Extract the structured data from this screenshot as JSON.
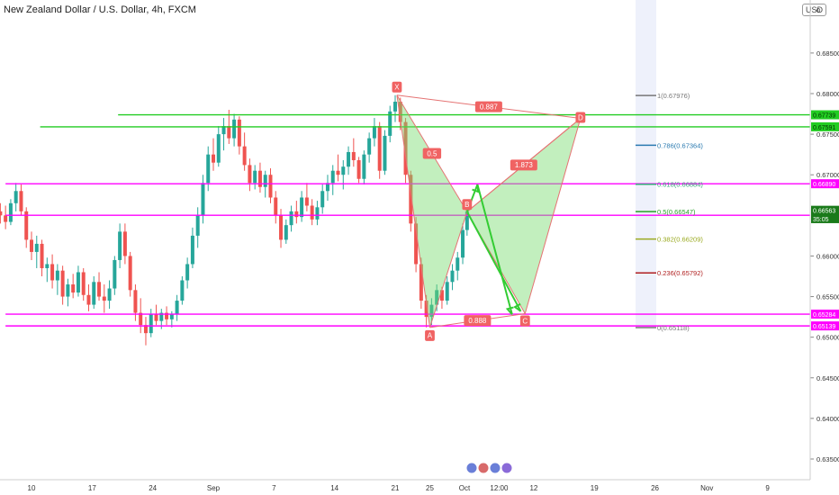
{
  "header": {
    "title": "New Zealand Dollar / U.S. Dollar, 4h, FXCM",
    "currency_label": "USD"
  },
  "chart_data": {
    "type": "candlestick",
    "title": "New Zealand Dollar / U.S. Dollar, 4h, FXCM",
    "symbol": "NZDUSD",
    "timeframe": "4h",
    "source": "FXCM",
    "ylim": [
      0.6325,
      0.681
    ],
    "y_ticks": [
      {
        "value": 0.635,
        "label": "0.63500"
      },
      {
        "value": 0.64,
        "label": "0.64000"
      },
      {
        "value": 0.645,
        "label": "0.64500"
      },
      {
        "value": 0.65,
        "label": "0.65000"
      },
      {
        "value": 0.655,
        "label": "0.65500"
      },
      {
        "value": 0.66,
        "label": "0.66000"
      },
      {
        "value": 0.67,
        "label": "0.67000"
      },
      {
        "value": 0.675,
        "label": "0.67500"
      },
      {
        "value": 0.68,
        "label": "0.68000"
      },
      {
        "value": 0.685,
        "label": "0.68500"
      }
    ],
    "top_label": "0",
    "x_ticks": [
      {
        "label": "10",
        "day": 0
      },
      {
        "label": "17",
        "day": 7
      },
      {
        "label": "24",
        "day": 14
      },
      {
        "label": "Sep",
        "day": 21
      },
      {
        "label": "7",
        "day": 28
      },
      {
        "label": "14",
        "day": 35
      },
      {
        "label": "21",
        "day": 42
      },
      {
        "label": "25",
        "day": 46
      },
      {
        "label": "Oct",
        "day": 50
      },
      {
        "label": "12:00",
        "day": 54
      },
      {
        "label": "12",
        "day": 58
      },
      {
        "label": "19",
        "day": 65
      },
      {
        "label": "26",
        "day": 72
      },
      {
        "label": "Nov",
        "day": 78
      },
      {
        "label": "9",
        "day": 85
      }
    ],
    "horizontal_lines": [
      {
        "price": 0.67739,
        "color": "#22cc22",
        "label": "0.67739",
        "start_day": 10
      },
      {
        "price": 0.67591,
        "color": "#22cc22",
        "label": "0.67591",
        "start_day": 1
      },
      {
        "price": 0.6689,
        "color": "#ff00ff",
        "label": "0.66890",
        "start_day": -3
      },
      {
        "price": 0.66502,
        "color": "#ff00ff",
        "label": "0.66502",
        "start_day": -3
      },
      {
        "price": 0.65284,
        "color": "#ff00ff",
        "label": "0.65284",
        "start_day": -3
      },
      {
        "price": 0.65139,
        "color": "#ff00ff",
        "label": "0.65139",
        "start_day": -3
      }
    ],
    "price_labels": [
      {
        "price": 0.66563,
        "label": "0.66563",
        "color": "#1a7a1a"
      },
      {
        "price": 0.6646,
        "label": "35:05",
        "color": "#1a7a1a"
      }
    ],
    "fibonacci": [
      {
        "level": "1",
        "price": 0.67976,
        "label": "1(0.67976)",
        "color": "#777777"
      },
      {
        "level": "0.786",
        "price": 0.67364,
        "label": "0.786(0.67364)",
        "color": "#2a7ab0"
      },
      {
        "level": "0.618",
        "price": 0.66884,
        "label": "0.618(0.66884)",
        "color": "#35a77a"
      },
      {
        "level": "0.5",
        "price": 0.66547,
        "label": "0.5(0.66547)",
        "color": "#2aa02a"
      },
      {
        "level": "0.382",
        "price": 0.66209,
        "label": "0.382(0.66209)",
        "color": "#9aaa20"
      },
      {
        "level": "0.236",
        "price": 0.65792,
        "label": "0.236(0.65792)",
        "color": "#b02020"
      },
      {
        "level": "0",
        "price": 0.65118,
        "label": "0(0.65118)",
        "color": "#777777"
      }
    ],
    "harmonic_pattern": {
      "points": [
        {
          "name": "X",
          "day": 42.2,
          "price": 0.6798
        },
        {
          "name": "A",
          "day": 46.0,
          "price": 0.6512
        },
        {
          "name": "B",
          "day": 50.3,
          "price": 0.66545
        },
        {
          "name": "C",
          "day": 57.0,
          "price": 0.6529
        },
        {
          "name": "D",
          "day": 63.4,
          "price": 0.67695
        }
      ],
      "ratios": [
        {
          "label": "0.887",
          "between": [
            "X",
            "D"
          ]
        },
        {
          "label": "0.5",
          "between": [
            "X",
            "B"
          ]
        },
        {
          "label": "1.873",
          "between": [
            "B",
            "D"
          ]
        },
        {
          "label": "0.888",
          "between": [
            "A",
            "C"
          ]
        }
      ],
      "projection_arrows": [
        {
          "from": {
            "day": 50.3,
            "price": 0.66545
          },
          "to": {
            "day": 51.5,
            "price": 0.6688
          }
        },
        {
          "from": {
            "day": 51.5,
            "price": 0.6688
          },
          "to": {
            "day": 55.5,
            "price": 0.6528
          }
        },
        {
          "from": {
            "day": 50.3,
            "price": 0.66545
          },
          "to": {
            "day": 56.5,
            "price": 0.6532
          }
        }
      ]
    },
    "candles": [
      {
        "day": -3.6,
        "o": 0.6655,
        "h": 0.6665,
        "l": 0.664,
        "c": 0.665
      },
      {
        "day": -3.0,
        "o": 0.665,
        "h": 0.6662,
        "l": 0.6633,
        "c": 0.6642
      },
      {
        "day": -2.4,
        "o": 0.6642,
        "h": 0.667,
        "l": 0.6638,
        "c": 0.6665
      },
      {
        "day": -1.8,
        "o": 0.6665,
        "h": 0.669,
        "l": 0.6655,
        "c": 0.668
      },
      {
        "day": -1.2,
        "o": 0.668,
        "h": 0.6688,
        "l": 0.665,
        "c": 0.6655
      },
      {
        "day": -0.6,
        "o": 0.6655,
        "h": 0.666,
        "l": 0.661,
        "c": 0.662
      },
      {
        "day": 0.0,
        "o": 0.662,
        "h": 0.663,
        "l": 0.6595,
        "c": 0.6605
      },
      {
        "day": 0.6,
        "o": 0.6605,
        "h": 0.6625,
        "l": 0.6585,
        "c": 0.6615
      },
      {
        "day": 1.2,
        "o": 0.6615,
        "h": 0.662,
        "l": 0.6575,
        "c": 0.6585
      },
      {
        "day": 1.8,
        "o": 0.6585,
        "h": 0.6598,
        "l": 0.6568,
        "c": 0.659
      },
      {
        "day": 2.4,
        "o": 0.659,
        "h": 0.6602,
        "l": 0.656,
        "c": 0.657
      },
      {
        "day": 3.0,
        "o": 0.657,
        "h": 0.659,
        "l": 0.6552,
        "c": 0.6582
      },
      {
        "day": 3.6,
        "o": 0.6582,
        "h": 0.6588,
        "l": 0.654,
        "c": 0.655
      },
      {
        "day": 4.2,
        "o": 0.655,
        "h": 0.6572,
        "l": 0.6538,
        "c": 0.6565
      },
      {
        "day": 4.8,
        "o": 0.6565,
        "h": 0.6578,
        "l": 0.6548,
        "c": 0.6555
      },
      {
        "day": 5.4,
        "o": 0.6555,
        "h": 0.6588,
        "l": 0.655,
        "c": 0.658
      },
      {
        "day": 6.0,
        "o": 0.658,
        "h": 0.6585,
        "l": 0.6545,
        "c": 0.6552
      },
      {
        "day": 6.6,
        "o": 0.6552,
        "h": 0.6565,
        "l": 0.6532,
        "c": 0.654
      },
      {
        "day": 7.2,
        "o": 0.654,
        "h": 0.6575,
        "l": 0.6535,
        "c": 0.6568
      },
      {
        "day": 7.8,
        "o": 0.6568,
        "h": 0.658,
        "l": 0.6545,
        "c": 0.655
      },
      {
        "day": 8.4,
        "o": 0.655,
        "h": 0.6565,
        "l": 0.653,
        "c": 0.6545
      },
      {
        "day": 9.0,
        "o": 0.6545,
        "h": 0.657,
        "l": 0.6535,
        "c": 0.656
      },
      {
        "day": 9.6,
        "o": 0.656,
        "h": 0.66,
        "l": 0.6552,
        "c": 0.6595
      },
      {
        "day": 10.2,
        "o": 0.6595,
        "h": 0.664,
        "l": 0.6585,
        "c": 0.663
      },
      {
        "day": 10.8,
        "o": 0.663,
        "h": 0.664,
        "l": 0.659,
        "c": 0.66
      },
      {
        "day": 11.4,
        "o": 0.66,
        "h": 0.6605,
        "l": 0.655,
        "c": 0.6558
      },
      {
        "day": 12.0,
        "o": 0.6558,
        "h": 0.6565,
        "l": 0.652,
        "c": 0.653
      },
      {
        "day": 12.6,
        "o": 0.653,
        "h": 0.6548,
        "l": 0.6505,
        "c": 0.6515
      },
      {
        "day": 13.2,
        "o": 0.6515,
        "h": 0.6525,
        "l": 0.649,
        "c": 0.6505
      },
      {
        "day": 13.8,
        "o": 0.6505,
        "h": 0.6535,
        "l": 0.65,
        "c": 0.6528
      },
      {
        "day": 14.4,
        "o": 0.6528,
        "h": 0.654,
        "l": 0.6515,
        "c": 0.652
      },
      {
        "day": 15.0,
        "o": 0.652,
        "h": 0.6535,
        "l": 0.651,
        "c": 0.653
      },
      {
        "day": 15.6,
        "o": 0.653,
        "h": 0.6538,
        "l": 0.6515,
        "c": 0.6522
      },
      {
        "day": 16.2,
        "o": 0.6522,
        "h": 0.6532,
        "l": 0.6512,
        "c": 0.6528
      },
      {
        "day": 16.8,
        "o": 0.6528,
        "h": 0.6552,
        "l": 0.652,
        "c": 0.6545
      },
      {
        "day": 17.4,
        "o": 0.6545,
        "h": 0.6575,
        "l": 0.654,
        "c": 0.657
      },
      {
        "day": 18.0,
        "o": 0.657,
        "h": 0.6598,
        "l": 0.656,
        "c": 0.659
      },
      {
        "day": 18.6,
        "o": 0.659,
        "h": 0.6635,
        "l": 0.6585,
        "c": 0.6625
      },
      {
        "day": 19.2,
        "o": 0.6625,
        "h": 0.666,
        "l": 0.661,
        "c": 0.665
      },
      {
        "day": 19.8,
        "o": 0.665,
        "h": 0.67,
        "l": 0.664,
        "c": 0.669
      },
      {
        "day": 20.4,
        "o": 0.669,
        "h": 0.6735,
        "l": 0.668,
        "c": 0.6725
      },
      {
        "day": 21.0,
        "o": 0.6725,
        "h": 0.6745,
        "l": 0.6705,
        "c": 0.6715
      },
      {
        "day": 21.6,
        "o": 0.6715,
        "h": 0.676,
        "l": 0.671,
        "c": 0.675
      },
      {
        "day": 22.2,
        "o": 0.675,
        "h": 0.677,
        "l": 0.673,
        "c": 0.676
      },
      {
        "day": 22.8,
        "o": 0.676,
        "h": 0.678,
        "l": 0.6738,
        "c": 0.6745
      },
      {
        "day": 23.4,
        "o": 0.6745,
        "h": 0.6775,
        "l": 0.6735,
        "c": 0.6768
      },
      {
        "day": 24.0,
        "o": 0.6768,
        "h": 0.6772,
        "l": 0.6725,
        "c": 0.6735
      },
      {
        "day": 24.6,
        "o": 0.6735,
        "h": 0.6752,
        "l": 0.6705,
        "c": 0.6712
      },
      {
        "day": 25.2,
        "o": 0.6712,
        "h": 0.672,
        "l": 0.668,
        "c": 0.669
      },
      {
        "day": 25.8,
        "o": 0.669,
        "h": 0.6712,
        "l": 0.6682,
        "c": 0.6705
      },
      {
        "day": 26.4,
        "o": 0.6705,
        "h": 0.6715,
        "l": 0.6678,
        "c": 0.6685
      },
      {
        "day": 27.0,
        "o": 0.6685,
        "h": 0.6705,
        "l": 0.6672,
        "c": 0.67
      },
      {
        "day": 27.6,
        "o": 0.67,
        "h": 0.6708,
        "l": 0.6665,
        "c": 0.6672
      },
      {
        "day": 28.2,
        "o": 0.6672,
        "h": 0.668,
        "l": 0.664,
        "c": 0.665
      },
      {
        "day": 28.8,
        "o": 0.665,
        "h": 0.6658,
        "l": 0.661,
        "c": 0.662
      },
      {
        "day": 29.4,
        "o": 0.662,
        "h": 0.6645,
        "l": 0.6615,
        "c": 0.6638
      },
      {
        "day": 30.0,
        "o": 0.6638,
        "h": 0.6662,
        "l": 0.663,
        "c": 0.6655
      },
      {
        "day": 30.6,
        "o": 0.6655,
        "h": 0.6668,
        "l": 0.664,
        "c": 0.6648
      },
      {
        "day": 31.2,
        "o": 0.6648,
        "h": 0.668,
        "l": 0.6642,
        "c": 0.6672
      },
      {
        "day": 31.8,
        "o": 0.6672,
        "h": 0.669,
        "l": 0.6655,
        "c": 0.6662
      },
      {
        "day": 32.4,
        "o": 0.6662,
        "h": 0.667,
        "l": 0.6638,
        "c": 0.6645
      },
      {
        "day": 33.0,
        "o": 0.6645,
        "h": 0.6668,
        "l": 0.6638,
        "c": 0.666
      },
      {
        "day": 33.6,
        "o": 0.666,
        "h": 0.6688,
        "l": 0.6652,
        "c": 0.668
      },
      {
        "day": 34.2,
        "o": 0.668,
        "h": 0.67,
        "l": 0.6668,
        "c": 0.669
      },
      {
        "day": 34.8,
        "o": 0.669,
        "h": 0.6712,
        "l": 0.6675,
        "c": 0.6705
      },
      {
        "day": 35.4,
        "o": 0.6705,
        "h": 0.6725,
        "l": 0.6692,
        "c": 0.67
      },
      {
        "day": 36.0,
        "o": 0.67,
        "h": 0.6718,
        "l": 0.6682,
        "c": 0.671
      },
      {
        "day": 36.6,
        "o": 0.671,
        "h": 0.6735,
        "l": 0.67,
        "c": 0.6728
      },
      {
        "day": 37.2,
        "o": 0.6728,
        "h": 0.6745,
        "l": 0.671,
        "c": 0.6718
      },
      {
        "day": 37.8,
        "o": 0.6718,
        "h": 0.6722,
        "l": 0.669,
        "c": 0.6695
      },
      {
        "day": 38.4,
        "o": 0.6695,
        "h": 0.673,
        "l": 0.6688,
        "c": 0.6725
      },
      {
        "day": 39.0,
        "o": 0.6725,
        "h": 0.6752,
        "l": 0.6715,
        "c": 0.6745
      },
      {
        "day": 39.6,
        "o": 0.6745,
        "h": 0.677,
        "l": 0.6735,
        "c": 0.676
      },
      {
        "day": 40.2,
        "o": 0.676,
        "h": 0.6765,
        "l": 0.6695,
        "c": 0.6705
      },
      {
        "day": 40.8,
        "o": 0.6705,
        "h": 0.6755,
        "l": 0.67,
        "c": 0.6748
      },
      {
        "day": 41.4,
        "o": 0.6748,
        "h": 0.6785,
        "l": 0.674,
        "c": 0.6778
      },
      {
        "day": 42.0,
        "o": 0.6778,
        "h": 0.6798,
        "l": 0.6765,
        "c": 0.679
      },
      {
        "day": 42.6,
        "o": 0.679,
        "h": 0.6795,
        "l": 0.6755,
        "c": 0.6765
      },
      {
        "day": 43.2,
        "o": 0.6765,
        "h": 0.677,
        "l": 0.669,
        "c": 0.67
      },
      {
        "day": 43.8,
        "o": 0.67,
        "h": 0.6705,
        "l": 0.663,
        "c": 0.664
      },
      {
        "day": 44.4,
        "o": 0.664,
        "h": 0.6648,
        "l": 0.658,
        "c": 0.659
      },
      {
        "day": 45.0,
        "o": 0.659,
        "h": 0.6598,
        "l": 0.6535,
        "c": 0.6545
      },
      {
        "day": 45.6,
        "o": 0.6545,
        "h": 0.6552,
        "l": 0.6512,
        "c": 0.6525
      },
      {
        "day": 46.2,
        "o": 0.6525,
        "h": 0.6548,
        "l": 0.6515,
        "c": 0.654
      },
      {
        "day": 46.8,
        "o": 0.654,
        "h": 0.6565,
        "l": 0.6532,
        "c": 0.6558
      },
      {
        "day": 47.4,
        "o": 0.6558,
        "h": 0.6562,
        "l": 0.6535,
        "c": 0.6545
      },
      {
        "day": 48.0,
        "o": 0.6545,
        "h": 0.6575,
        "l": 0.654,
        "c": 0.6568
      },
      {
        "day": 48.6,
        "o": 0.6568,
        "h": 0.659,
        "l": 0.6558,
        "c": 0.6582
      },
      {
        "day": 49.2,
        "o": 0.6582,
        "h": 0.6605,
        "l": 0.657,
        "c": 0.6598
      },
      {
        "day": 49.8,
        "o": 0.6598,
        "h": 0.664,
        "l": 0.659,
        "c": 0.6632
      },
      {
        "day": 50.3,
        "o": 0.6632,
        "h": 0.666,
        "l": 0.6625,
        "c": 0.6655
      }
    ],
    "grid": false,
    "legend": "none"
  }
}
